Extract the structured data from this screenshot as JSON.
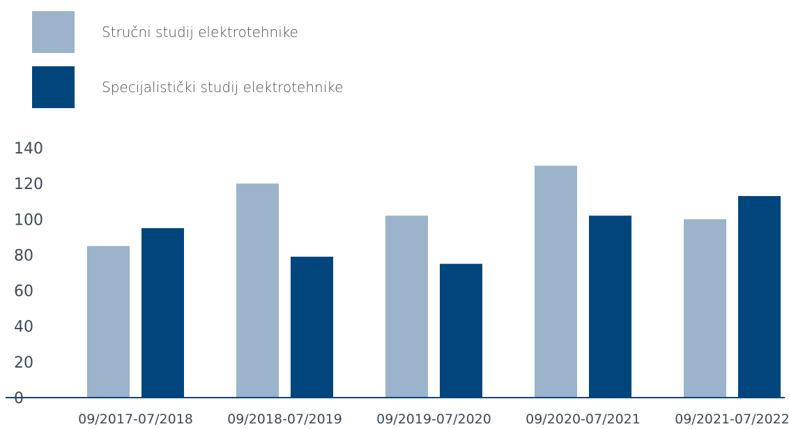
{
  "chart_data": {
    "type": "bar",
    "categories": [
      "09/2017-07/2018",
      "09/2018-07/2019",
      "09/2019-07/2020",
      "09/2020-07/2021",
      "09/2021-07/2022"
    ],
    "series": [
      {
        "name": "Stručni studij elektrotehnike",
        "color": "#9bb3cb",
        "values": [
          85,
          120,
          102,
          130,
          100
        ]
      },
      {
        "name": "Specijalistički studij elektrotehnike",
        "color": "#00457c",
        "values": [
          95,
          79,
          75,
          102,
          113
        ]
      }
    ],
    "ylim": [
      0,
      140
    ],
    "yticks": [
      "0",
      "20",
      "40",
      "60",
      "80",
      "100",
      "120",
      "140"
    ],
    "legend_position": "top-left",
    "grid": false
  }
}
